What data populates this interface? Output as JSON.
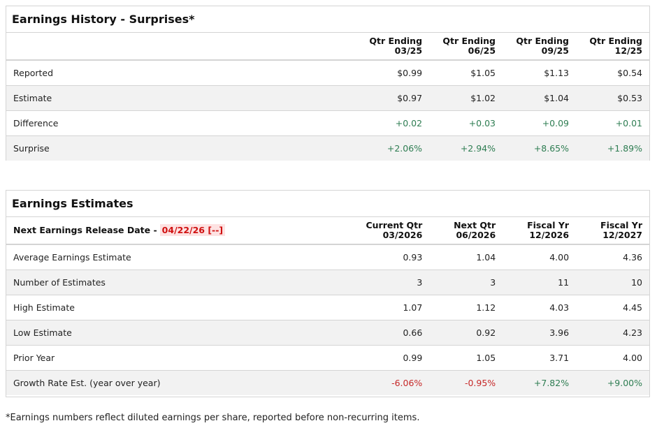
{
  "history": {
    "title": "Earnings History - Surprises*",
    "columns": [
      [
        "Qtr Ending",
        "03/25"
      ],
      [
        "Qtr Ending",
        "06/25"
      ],
      [
        "Qtr Ending",
        "09/25"
      ],
      [
        "Qtr Ending",
        "12/25"
      ]
    ],
    "rows": [
      {
        "label": "Reported",
        "values": [
          "$0.99",
          "$1.05",
          "$1.13",
          "$0.54"
        ]
      },
      {
        "label": "Estimate",
        "values": [
          "$0.97",
          "$1.02",
          "$1.04",
          "$0.53"
        ]
      },
      {
        "label": "Difference",
        "values": [
          "+0.02",
          "+0.03",
          "+0.09",
          "+0.01"
        ]
      },
      {
        "label": "Surprise",
        "values": [
          "+2.06%",
          "+2.94%",
          "+8.65%",
          "+1.89%"
        ]
      }
    ]
  },
  "estimates": {
    "title": "Earnings Estimates",
    "release_label": "Next Earnings Release Date -",
    "release_date": "04/22/26 [--]",
    "columns": [
      [
        "Current Qtr",
        "03/2026"
      ],
      [
        "Next Qtr",
        "06/2026"
      ],
      [
        "Fiscal Yr",
        "12/2026"
      ],
      [
        "Fiscal Yr",
        "12/2027"
      ]
    ],
    "rows": [
      {
        "label": "Average Earnings Estimate",
        "values": [
          "0.93",
          "1.04",
          "4.00",
          "4.36"
        ]
      },
      {
        "label": "Number of Estimates",
        "values": [
          "3",
          "3",
          "11",
          "10"
        ]
      },
      {
        "label": "High Estimate",
        "values": [
          "1.07",
          "1.12",
          "4.03",
          "4.45"
        ]
      },
      {
        "label": "Low Estimate",
        "values": [
          "0.66",
          "0.92",
          "3.96",
          "4.23"
        ]
      },
      {
        "label": "Prior Year",
        "values": [
          "0.99",
          "1.05",
          "3.71",
          "4.00"
        ]
      },
      {
        "label": "Growth Rate Est. (year over year)",
        "values": [
          "-6.06%",
          "-0.95%",
          "+7.82%",
          "+9.00%"
        ]
      }
    ]
  },
  "footnote": "*Earnings numbers reflect diluted earnings per share, reported before non-recurring items.",
  "colors": {
    "positive": "#2e7d52",
    "negative": "#c62828",
    "highlight_bg": "#fde2e2"
  }
}
